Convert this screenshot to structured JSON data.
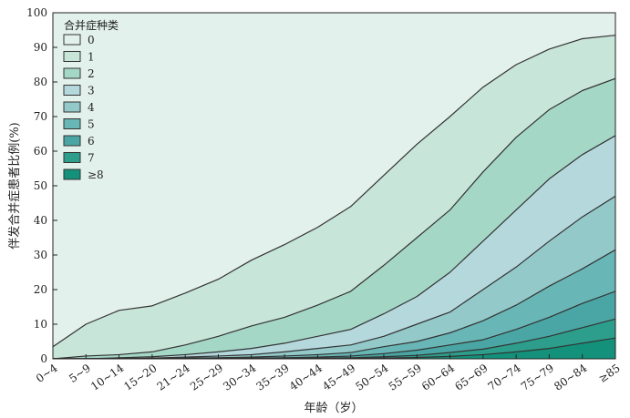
{
  "chart_data": {
    "type": "area",
    "xlabel": "年龄（岁）",
    "ylabel": "伴发合并症患者比例(%)",
    "ylim": [
      0,
      100
    ],
    "yticks": [
      0,
      10,
      20,
      30,
      40,
      50,
      60,
      70,
      80,
      90,
      100
    ],
    "grid": false,
    "legend_title": "合并症种类",
    "legend_position": "top-left",
    "categories": [
      "0~4",
      "5~9",
      "10~14",
      "15~20",
      "21~24",
      "25~29",
      "30~34",
      "35~39",
      "40~44",
      "45~49",
      "50~54",
      "55~59",
      "60~64",
      "65~69",
      "70~74",
      "75~79",
      "80~84",
      "≥85"
    ],
    "boundaries": [
      [
        3.5,
        10,
        14,
        15.3,
        19,
        23,
        28.5,
        33,
        38,
        44,
        53,
        62,
        70,
        78.5,
        85,
        89.5,
        92.5,
        93.5
      ],
      [
        0,
        0.8,
        1.2,
        2,
        4,
        6.5,
        9.5,
        12,
        15.5,
        19.5,
        27,
        35,
        43,
        54,
        64,
        72,
        77.5,
        81
      ],
      [
        0,
        0,
        0.3,
        0.6,
        1.2,
        2,
        3,
        4.5,
        6.5,
        8.5,
        13,
        18,
        25,
        34,
        43,
        52,
        59,
        64.5
      ],
      [
        0,
        0,
        0,
        0.2,
        0.5,
        0.8,
        1.2,
        2,
        3,
        4,
        6.5,
        10,
        13.5,
        20,
        26.5,
        34,
        41,
        47
      ],
      [
        0,
        0,
        0,
        0,
        0.2,
        0.3,
        0.5,
        0.8,
        1.2,
        1.8,
        3.5,
        5,
        7.5,
        11,
        15.5,
        21,
        26,
        31.5
      ],
      [
        0,
        0,
        0,
        0,
        0,
        0.1,
        0.2,
        0.3,
        0.5,
        0.8,
        1.5,
        2.5,
        4,
        5.5,
        8.5,
        12,
        16,
        19.5
      ],
      [
        0,
        0,
        0,
        0,
        0,
        0,
        0.1,
        0.1,
        0.2,
        0.3,
        0.6,
        1,
        1.8,
        2.8,
        4.5,
        6.5,
        9,
        11.5
      ],
      [
        0,
        0,
        0,
        0,
        0,
        0,
        0,
        0,
        0.1,
        0.1,
        0.2,
        0.4,
        0.7,
        1.2,
        2,
        3,
        4.5,
        6
      ]
    ],
    "series": [
      {
        "name": "0",
        "color": "#e3f1ec"
      },
      {
        "name": "1",
        "color": "#c7e5d9"
      },
      {
        "name": "2",
        "color": "#a5d7c7"
      },
      {
        "name": "3",
        "color": "#b4d8dc"
      },
      {
        "name": "4",
        "color": "#94c9ca"
      },
      {
        "name": "5",
        "color": "#69b6b6"
      },
      {
        "name": "6",
        "color": "#4aa6a4"
      },
      {
        "name": "7",
        "color": "#2e9e8c"
      },
      {
        "name": "≥8",
        "color": "#14917a"
      }
    ]
  }
}
